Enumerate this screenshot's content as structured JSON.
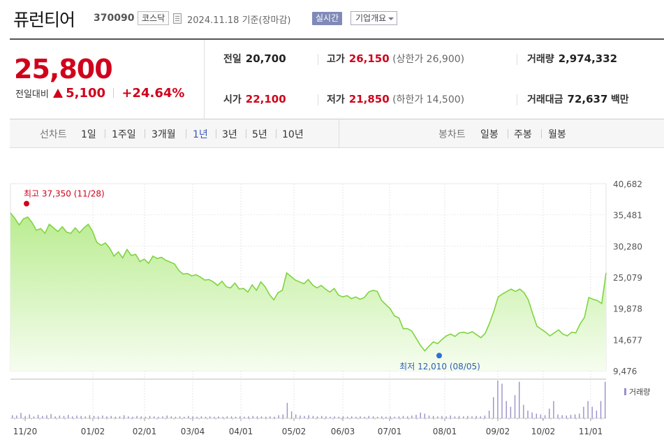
{
  "header": {
    "name": "퓨런티어",
    "code": "370090",
    "market": "코스닥",
    "date": "2024.11.18 기준(장마감)",
    "realtime": "실시간",
    "company_info": "기업개요"
  },
  "quote": {
    "price": "25,800",
    "change_label": "전일대비",
    "change": "5,100",
    "change_rate": "+24.64%",
    "prev_close_label": "전일",
    "prev_close": "20,700",
    "open_label": "시가",
    "open": "22,100",
    "high_label": "고가",
    "high": "26,150",
    "upper_limit": "(상한가 26,900)",
    "low_label": "저가",
    "low": "21,850",
    "lower_limit": "(하한가 14,500)",
    "volume_label": "거래량",
    "volume": "2,974,332",
    "amount_label": "거래대금",
    "amount": "72,637",
    "amount_unit": "백만"
  },
  "periods": {
    "line_label": "선차트",
    "line_items": [
      "1일",
      "1주일",
      "3개월",
      "1년",
      "3년",
      "5년",
      "10년"
    ],
    "active": "1년",
    "candle_label": "봉차트",
    "candle_items": [
      "일봉",
      "주봉",
      "월봉"
    ]
  },
  "colors": {
    "line": "#7fd43f",
    "fill_top": "#b9ec8f",
    "fill_bottom": "#f6fdf0",
    "up": "#d0021b",
    "volume": "#9a8fc9",
    "low_dot": "#2f6fd6"
  },
  "chart_data": {
    "type": "area",
    "x_ticks": [
      "11/20",
      "01/02",
      "02/01",
      "03/04",
      "04/01",
      "05/02",
      "06/03",
      "07/01",
      "08/01",
      "09/02",
      "10/02",
      "11/01"
    ],
    "y_ticks": [
      9476,
      14677,
      19878,
      25079,
      30280,
      35481,
      40682
    ],
    "y_tick_labels": [
      "9,476",
      "14,677",
      "19,878",
      "25,079",
      "30,280",
      "35,481",
      "40,682"
    ],
    "ylim": [
      9476,
      40682
    ],
    "high_label": "최고 37,350 (11/28)",
    "low_label": "최저 12,010 (08/05)",
    "high": 37350,
    "low": 12010,
    "volume_legend": "거래량",
    "series": [
      {
        "values": [
          35800,
          34900,
          33800,
          34800,
          35100,
          34200,
          32900,
          33200,
          32400,
          33900,
          33300,
          32700,
          33500,
          32600,
          32400,
          33300,
          32500,
          33300,
          33900,
          32800,
          30900,
          30400,
          30800,
          29900,
          28600,
          29300,
          28300,
          29700,
          28700,
          28900,
          27700,
          28100,
          27400,
          28600,
          28200,
          28400,
          27900,
          27600,
          27300,
          26200,
          25600,
          25700,
          25300,
          25500,
          25100,
          24600,
          24700,
          24300,
          23700,
          24400,
          23500,
          23300,
          24100,
          23100,
          23200,
          22600,
          23800,
          22900,
          24300,
          23500,
          22200,
          21300,
          22500,
          22900,
          25800,
          25200,
          24600,
          24300,
          24000,
          24700,
          23800,
          23300,
          23700,
          23100,
          22600,
          23200,
          22100,
          21800,
          22000,
          21500,
          21800,
          21400,
          21700,
          22600,
          22900,
          22700,
          21200,
          20500,
          19800,
          18600,
          18300,
          16500,
          16500,
          16100,
          14900,
          13700,
          12800,
          13600,
          14300,
          14000,
          14700,
          15300,
          15600,
          15200,
          15800,
          15900,
          15700,
          16000,
          15500,
          15000,
          15700,
          17400,
          19400,
          21800,
          22300,
          22700,
          23100,
          22700,
          23100,
          22500,
          21300,
          19000,
          16900,
          16400,
          15900,
          15300,
          15800,
          16300,
          15600,
          15300,
          15900,
          15800,
          17300,
          18400,
          21700,
          21400,
          21200,
          20700,
          25800
        ]
      }
    ],
    "volume": [
      0.08,
      0.07,
      0.14,
      0.06,
      0.1,
      0.05,
      0.09,
      0.06,
      0.08,
      0.11,
      0.05,
      0.07,
      0.06,
      0.09,
      0.05,
      0.07,
      0.06,
      0.05,
      0.08,
      0.06,
      0.05,
      0.07,
      0.05,
      0.06,
      0.04,
      0.05,
      0.08,
      0.05,
      0.04,
      0.06,
      0.05,
      0.04,
      0.06,
      0.05,
      0.04,
      0.05,
      0.07,
      0.05,
      0.04,
      0.05,
      0.04,
      0.06,
      0.05,
      0.04,
      0.05,
      0.04,
      0.05,
      0.04,
      0.05,
      0.04,
      0.05,
      0.05,
      0.04,
      0.05,
      0.04,
      0.05,
      0.06,
      0.05,
      0.05,
      0.04,
      0.05,
      0.04,
      0.08,
      0.1,
      0.4,
      0.18,
      0.1,
      0.07,
      0.06,
      0.08,
      0.06,
      0.05,
      0.06,
      0.05,
      0.04,
      0.05,
      0.04,
      0.05,
      0.04,
      0.05,
      0.04,
      0.05,
      0.04,
      0.06,
      0.05,
      0.04,
      0.05,
      0.04,
      0.05,
      0.04,
      0.05,
      0.06,
      0.05,
      0.07,
      0.09,
      0.15,
      0.12,
      0.07,
      0.06,
      0.05,
      0.06,
      0.05,
      0.07,
      0.05,
      0.06,
      0.05,
      0.06,
      0.05,
      0.06,
      0.05,
      0.07,
      0.2,
      0.55,
      0.98,
      0.9,
      0.45,
      0.3,
      0.6,
      0.95,
      0.35,
      0.2,
      0.15,
      0.12,
      0.1,
      0.08,
      0.25,
      0.45,
      0.1,
      0.08,
      0.07,
      0.09,
      0.1,
      0.12,
      0.3,
      0.45,
      0.3,
      0.2,
      0.45,
      0.95
    ]
  }
}
